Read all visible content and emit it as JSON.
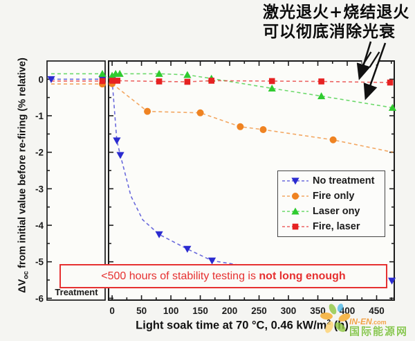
{
  "annotation": {
    "line1": "激光退火+烧结退火",
    "line2": "可以彻底消除光衰"
  },
  "warning": {
    "prefix": "<500 hours of stability testing is ",
    "bold": "not long enough"
  },
  "treatment_panel_label": "Treatment",
  "watermark": {
    "site": "IN-EN",
    "tld": ".com",
    "cn": "国际能源网"
  },
  "chart_data": {
    "type": "line",
    "title": "",
    "xlabel_pre": "Light soak time at 70 °C, 0.46 kW/m",
    "xlabel_sup": "2",
    "xlabel_post": " (h)",
    "ylabel_delta": "ΔV",
    "ylabel_sub": "oc",
    "ylabel_rest": " from initial value before re-firing (% relative)",
    "x_ticks": [
      0,
      50,
      100,
      150,
      200,
      250,
      300,
      350,
      400,
      450
    ],
    "x_minor_step": 25,
    "y_ticks": [
      0,
      -1,
      -2,
      -3,
      -4,
      -5,
      -6
    ],
    "y_minor_step": 0.5,
    "xlim": [
      -6,
      480
    ],
    "ylim": [
      0.5,
      -6.05
    ],
    "grid": false,
    "top_axis_break_h": 437,
    "legend_position": "inside middle-right",
    "series": [
      {
        "name": "No treatment",
        "color": "#2b2bd0",
        "marker": "triangle-down",
        "treatment_value": 0.0,
        "points": [
          [
            0,
            -0.02
          ],
          [
            8,
            -1.68
          ],
          [
            14,
            -2.08
          ],
          [
            80,
            -4.25
          ],
          [
            128,
            -4.65
          ],
          [
            170,
            -4.97
          ],
          [
            476,
            -5.52
          ]
        ],
        "line_support": [
          [
            32,
            -3.2
          ],
          [
            52,
            -3.85
          ],
          [
            240,
            -5.15
          ],
          [
            360,
            -5.35
          ]
        ]
      },
      {
        "name": "Fire only",
        "color": "#ef8322",
        "marker": "circle",
        "treatment_value": -0.13,
        "points": [
          [
            0,
            -0.12
          ],
          [
            60,
            -0.88
          ],
          [
            150,
            -0.92
          ],
          [
            218,
            -1.3
          ],
          [
            257,
            -1.38
          ],
          [
            376,
            -1.66
          ]
        ],
        "line_support": [
          [
            478,
            -2.0
          ]
        ]
      },
      {
        "name": "Laser ony",
        "color": "#2fcb2f",
        "marker": "triangle-up",
        "treatment_value": 0.15,
        "points": [
          [
            0,
            0.1
          ],
          [
            6,
            0.15
          ],
          [
            13,
            0.15
          ],
          [
            80,
            0.15
          ],
          [
            128,
            0.12
          ],
          [
            169,
            0.02
          ],
          [
            272,
            -0.25
          ],
          [
            356,
            -0.46
          ],
          [
            477,
            -0.78
          ]
        ],
        "line_support": []
      },
      {
        "name": "Fire, laser",
        "color": "#e62222",
        "marker": "square",
        "treatment_value": -0.05,
        "points": [
          [
            0,
            -0.04
          ],
          [
            9,
            -0.04
          ],
          [
            80,
            -0.06
          ],
          [
            128,
            -0.07
          ],
          [
            169,
            -0.04
          ],
          [
            272,
            -0.05
          ],
          [
            356,
            -0.06
          ],
          [
            473,
            -0.09
          ]
        ],
        "line_support": []
      }
    ]
  }
}
